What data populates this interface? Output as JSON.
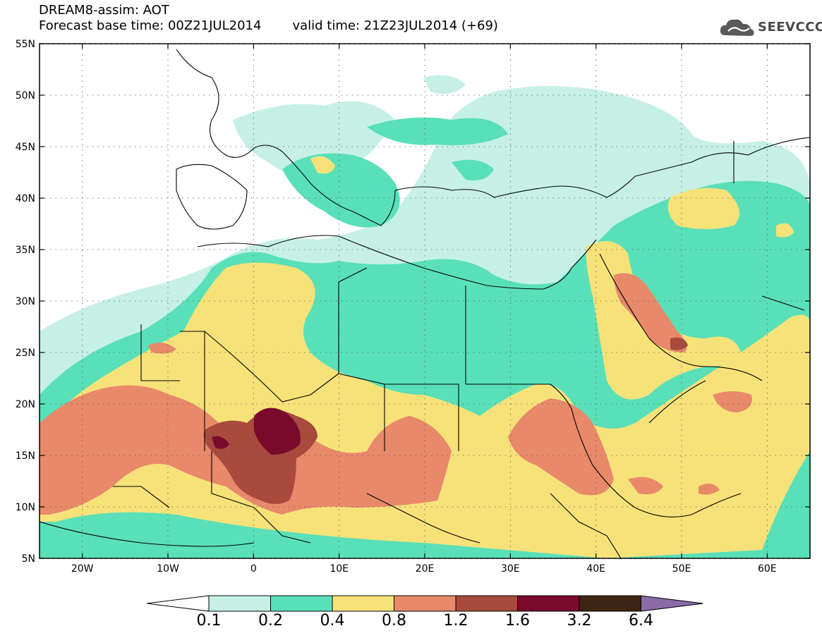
{
  "header": {
    "title": "DREAM8-assim: AOT",
    "base_time": "Forecast base time: 00Z21JUL2014",
    "valid_time": "valid time: 21Z23JUL2014 (+69)"
  },
  "logo": {
    "text": "SEEVCCC"
  },
  "axes": {
    "lon_range": [
      -25,
      65
    ],
    "lat_range": [
      5,
      55
    ],
    "x_ticks": [
      "20W",
      "10W",
      "0",
      "10E",
      "20E",
      "30E",
      "40E",
      "50E",
      "60E"
    ],
    "x_tick_values": [
      -20,
      -10,
      0,
      10,
      20,
      30,
      40,
      50,
      60
    ],
    "y_ticks": [
      "55N",
      "50N",
      "45N",
      "40N",
      "35N",
      "30N",
      "25N",
      "20N",
      "15N",
      "10N",
      "5N"
    ],
    "y_tick_values": [
      55,
      50,
      45,
      40,
      35,
      30,
      25,
      20,
      15,
      10,
      5
    ]
  },
  "legend": {
    "labels": [
      "0.1",
      "0.2",
      "0.4",
      "0.8",
      "1.2",
      "1.6",
      "3.2",
      "6.4"
    ],
    "colors": [
      "#ffffff",
      "#c6f0e6",
      "#5ae0b8",
      "#f7e27a",
      "#e8896a",
      "#a84a3e",
      "#7a0a2c",
      "#3d2414",
      "#8c6aa8"
    ]
  },
  "colors": {
    "c01": "#c6f0e6",
    "c02": "#5ae0b8",
    "c04": "#f7e27a",
    "c08": "#e8896a",
    "c12": "#a84a3e",
    "c16": "#7a0a2c"
  }
}
